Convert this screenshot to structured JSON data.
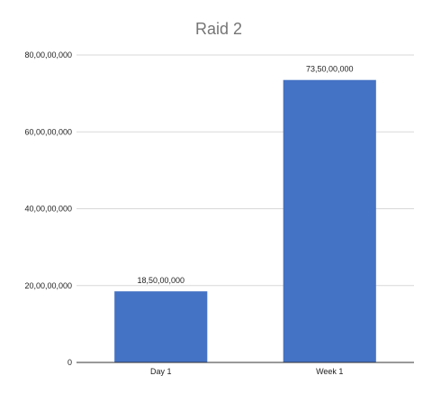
{
  "chart_data": {
    "type": "bar",
    "title": "Raid 2",
    "xlabel": "",
    "ylabel": "",
    "categories": [
      "Day 1",
      "Week 1"
    ],
    "values": [
      185000000,
      735000000
    ],
    "value_labels": [
      "18,50,00,000",
      "73,50,00,000"
    ],
    "ylim": [
      0,
      800000000
    ],
    "yticks": [
      0,
      200000000,
      400000000,
      600000000,
      800000000
    ],
    "ytick_labels": [
      "0",
      "20,00,00,000",
      "40,00,00,000",
      "60,00,00,000",
      "80,00,00,000"
    ],
    "grid": true,
    "legend": "none",
    "bar_color": "#4472c4"
  }
}
